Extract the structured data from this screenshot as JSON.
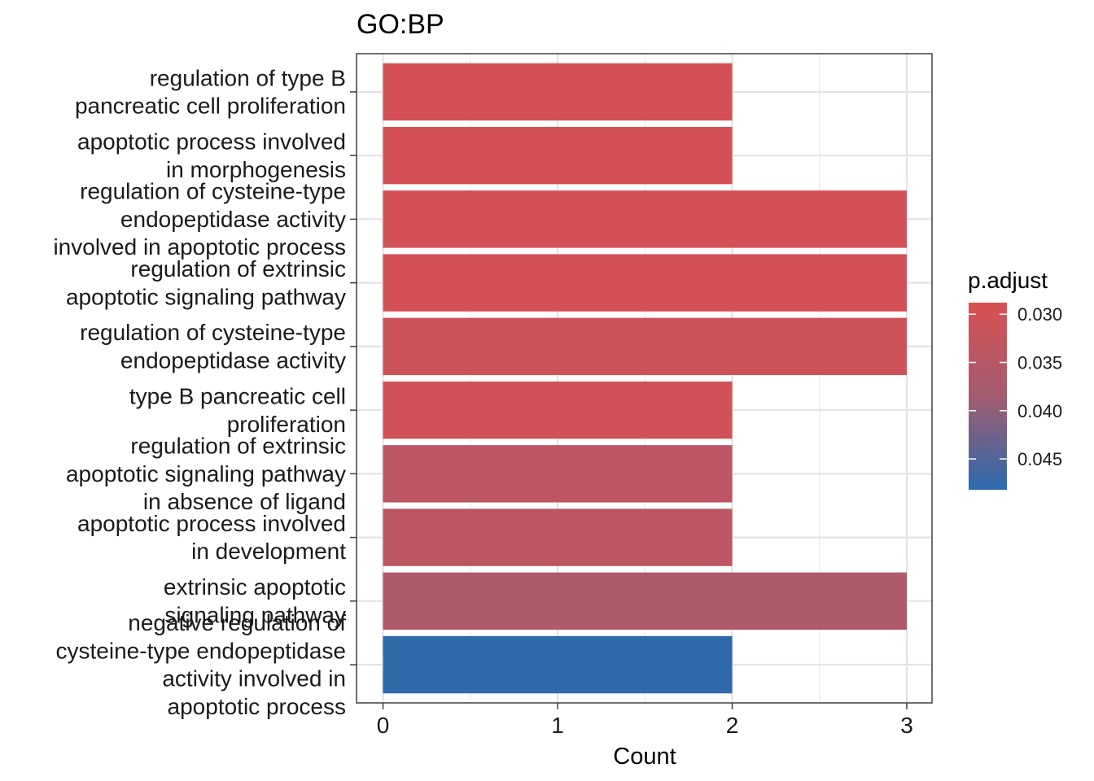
{
  "chart_data": {
    "type": "bar",
    "orientation": "horizontal",
    "title": "GO:BP",
    "xlabel": "Count",
    "ylabel": "",
    "xlim": [
      0,
      3.15
    ],
    "x_ticks": [
      "0",
      "1",
      "2",
      "3"
    ],
    "grid": true,
    "categories": [
      [
        "regulation of type B",
        "pancreatic cell proliferation"
      ],
      [
        "apoptotic process involved",
        "in morphogenesis"
      ],
      [
        "regulation of cysteine-type",
        "endopeptidase activity",
        "involved in apoptotic process"
      ],
      [
        "regulation of extrinsic",
        "apoptotic signaling pathway"
      ],
      [
        "regulation of cysteine-type",
        "endopeptidase activity"
      ],
      [
        "type B pancreatic cell",
        "proliferation"
      ],
      [
        "regulation of extrinsic",
        "apoptotic signaling pathway",
        "in absence of ligand"
      ],
      [
        "apoptotic process involved",
        "in development"
      ],
      [
        "extrinsic apoptotic",
        "signaling pathway"
      ],
      [
        "negative regulation of",
        "cysteine-type endopeptidase",
        "activity involved in",
        "apoptotic process"
      ]
    ],
    "values": [
      2,
      2,
      3,
      3,
      3,
      2,
      2,
      2,
      3,
      2
    ],
    "p_adjust": [
      0.0299,
      0.0299,
      0.0299,
      0.0299,
      0.031,
      0.0305,
      0.034,
      0.034,
      0.0365,
      0.0478
    ],
    "legend": {
      "title": "p.adjust",
      "position": "right",
      "range": [
        0.0288,
        0.0482
      ],
      "tick_values": [
        0.03,
        0.035,
        0.04,
        0.045
      ],
      "tick_labels": [
        "0.030",
        "0.035",
        "0.040",
        "0.045"
      ],
      "low_color": "#d95053",
      "high_color": "#2b6aad"
    }
  }
}
